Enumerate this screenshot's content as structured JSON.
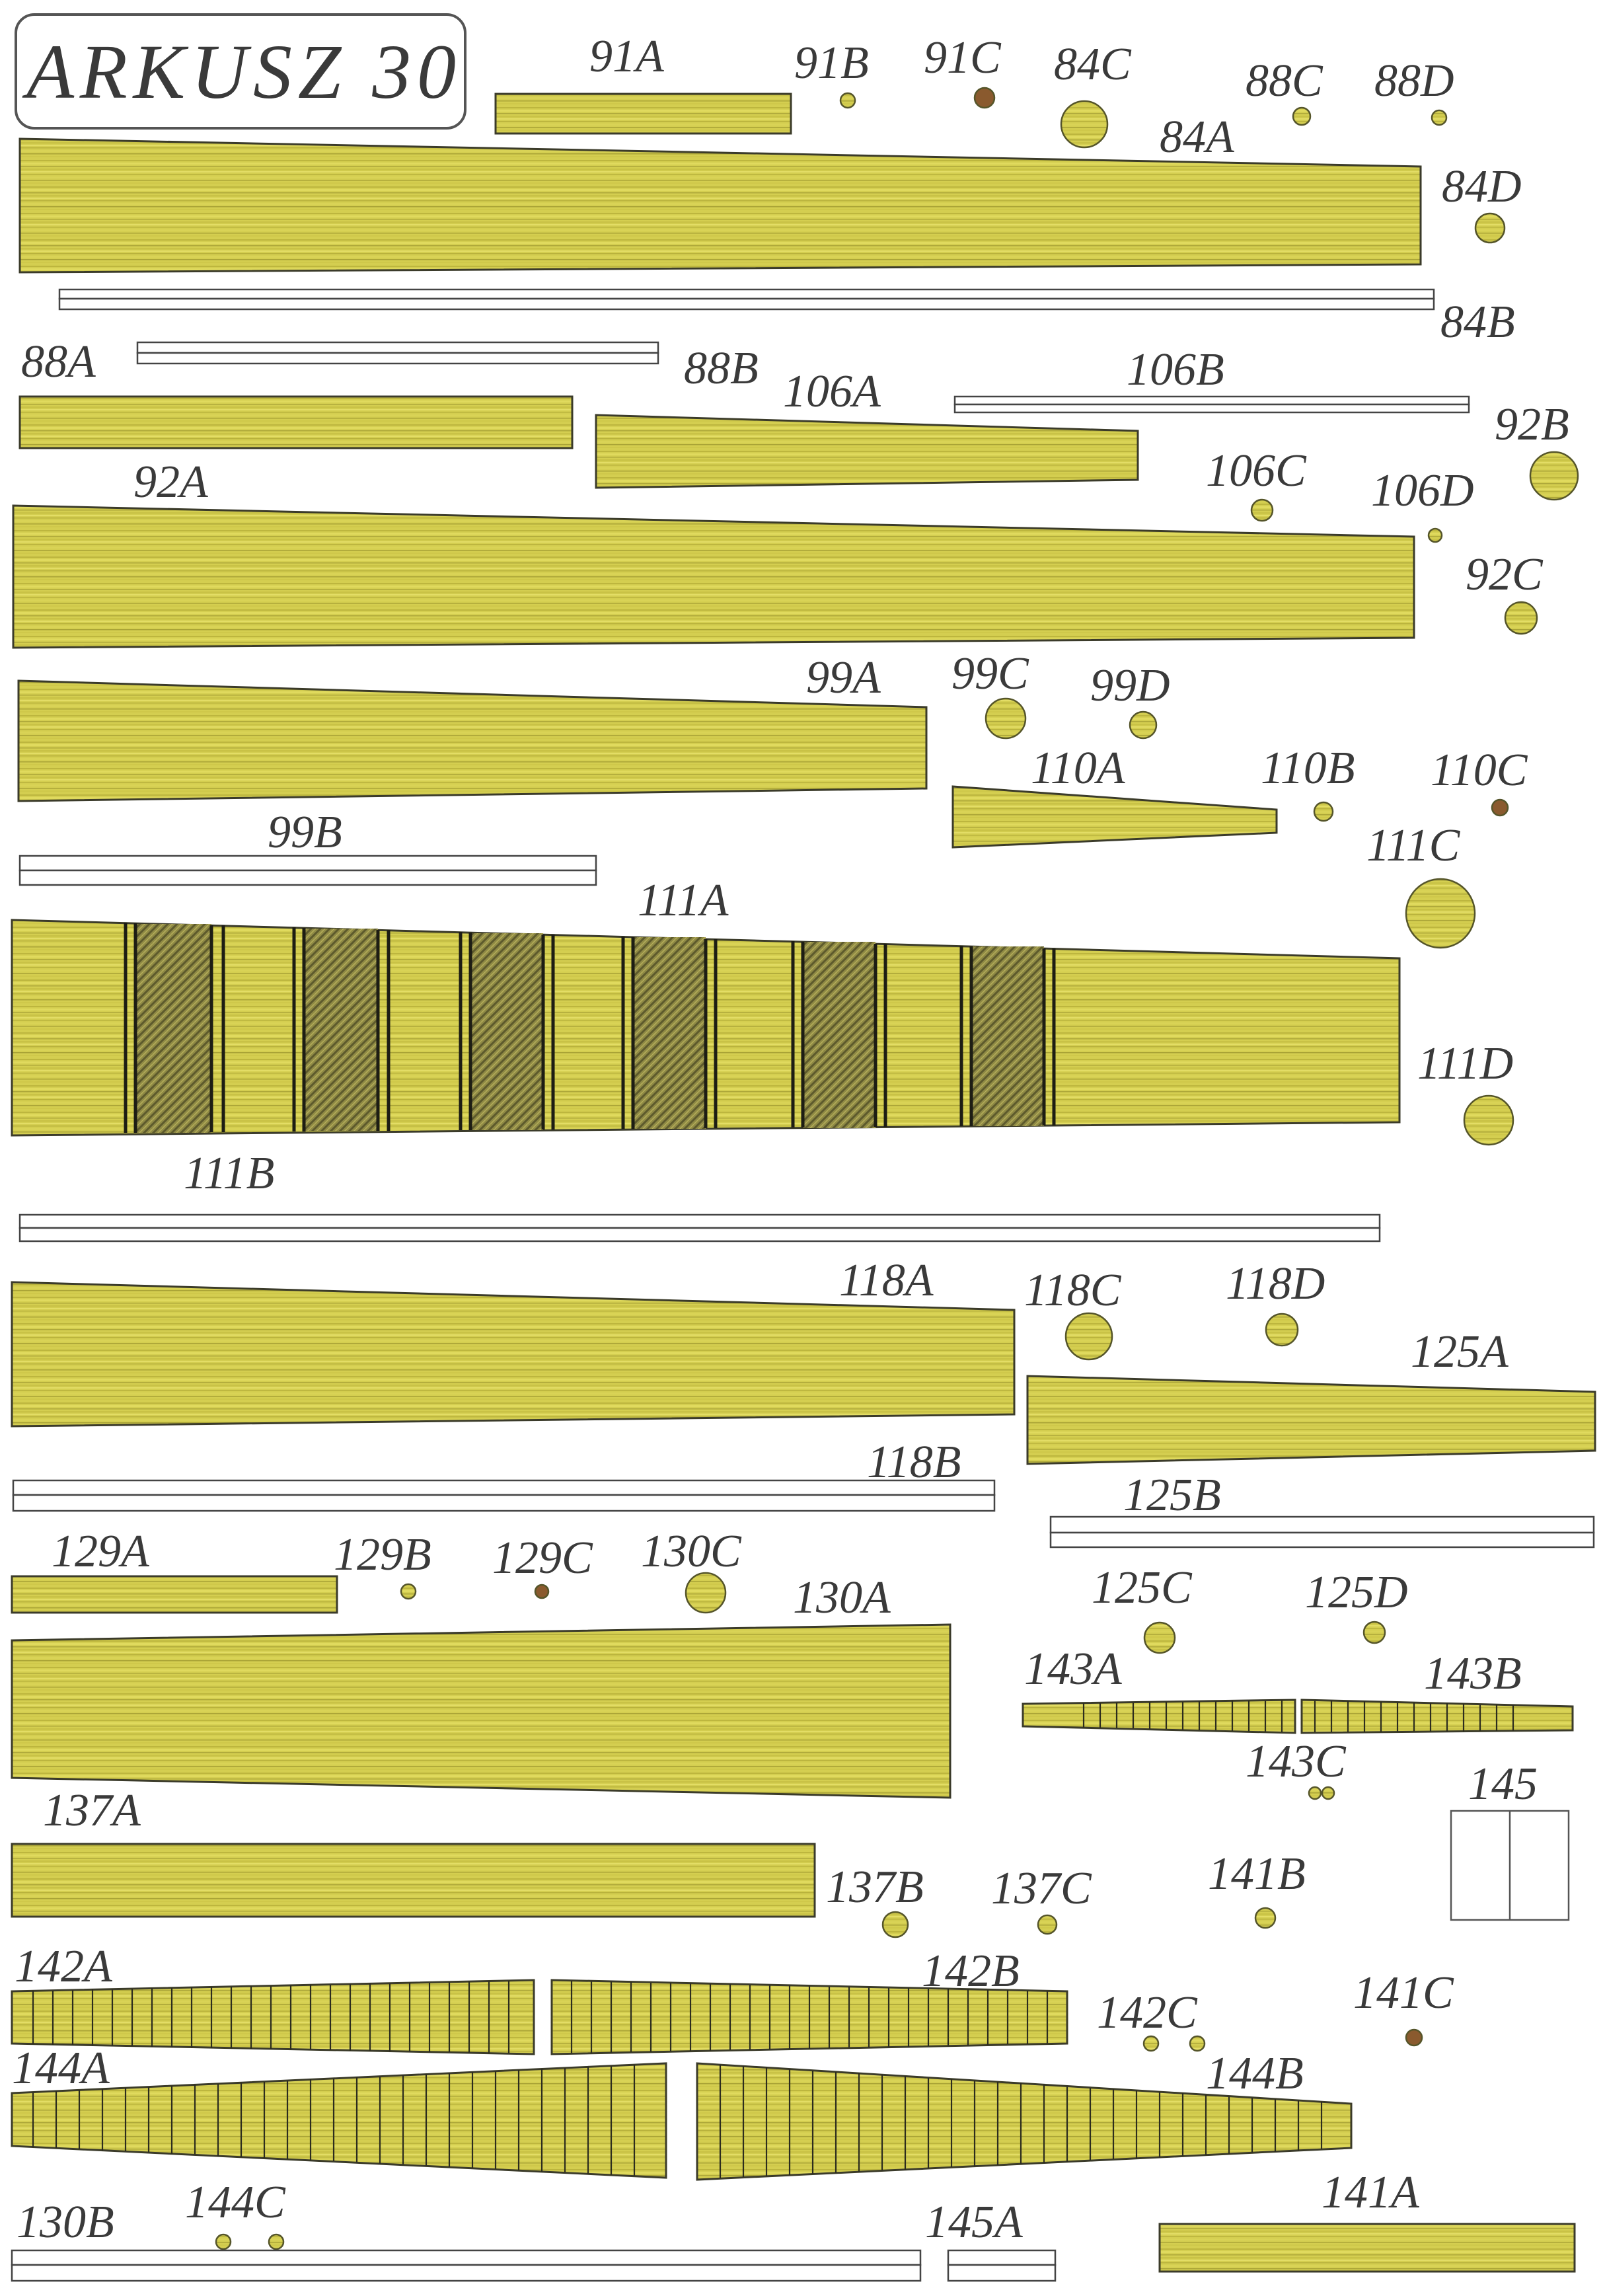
{
  "sheet": {
    "title": "ARKUSZ 30"
  },
  "colors": {
    "wood": "#d2cc4e",
    "wood_light": "#e2dc62",
    "wood_dark": "#b3ac3a",
    "dark_dot": "#8a5a2e",
    "band": "#8c8842"
  },
  "labels": {
    "l91A": "91A",
    "l91B": "91B",
    "l91C": "91C",
    "l84C": "84C",
    "l88C": "88C",
    "l88D": "88D",
    "l84A": "84A",
    "l84D": "84D",
    "l84B": "84B",
    "l88A": "88A",
    "l88B": "88B",
    "l106A": "106A",
    "l106B": "106B",
    "l92B": "92B",
    "l92A": "92A",
    "l106C": "106C",
    "l106D": "106D",
    "l92C": "92C",
    "l99A": "99A",
    "l99C": "99C",
    "l99D": "99D",
    "l110A": "110A",
    "l110B": "110B",
    "l110C": "110C",
    "l99B": "99B",
    "l111C": "111C",
    "l111A": "111A",
    "l111D": "111D",
    "l111B": "111B",
    "l118A": "118A",
    "l118C": "118C",
    "l118D": "118D",
    "l125A": "125A",
    "l118B": "118B",
    "l125B": "125B",
    "l129A": "129A",
    "l129B": "129B",
    "l129C": "129C",
    "l130C": "130C",
    "l130A": "130A",
    "l125C": "125C",
    "l125D": "125D",
    "l143A": "143A",
    "l143B": "143B",
    "l143C": "143C",
    "l145": "145",
    "l137A": "137A",
    "l137B": "137B",
    "l137C": "137C",
    "l141B": "141B",
    "l142A": "142A",
    "l142B": "142B",
    "l142C": "142C",
    "l141C": "141C",
    "l144A": "144A",
    "l144B": "144B",
    "l130B": "130B",
    "l144C": "144C",
    "l145A": "145A",
    "l141A": "141A"
  }
}
